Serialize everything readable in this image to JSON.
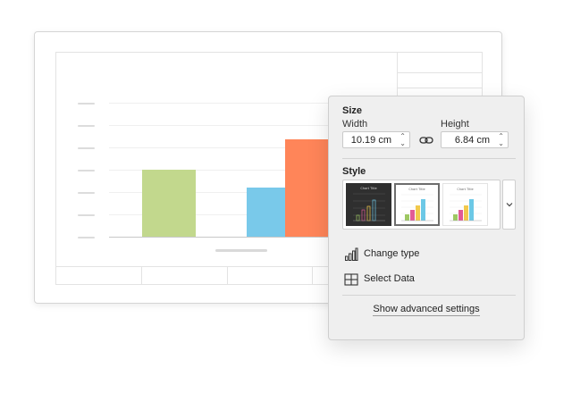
{
  "popover": {
    "size_title": "Size",
    "width_label": "Width",
    "width_value": "10.19 cm",
    "height_label": "Height",
    "height_value": "6.84 cm",
    "style_title": "Style",
    "style_thumbnails": [
      {
        "title": "Chart Title",
        "theme": "dark"
      },
      {
        "title": "Chart Title",
        "theme": "light"
      },
      {
        "title": "Chart Title",
        "theme": "light"
      }
    ],
    "change_type_label": "Change type",
    "select_data_label": "Select Data",
    "advanced_settings_label": "Show advanced settings"
  },
  "chart_data": {
    "type": "bar",
    "categories": [
      "",
      "",
      ""
    ],
    "series": [
      {
        "values": [
          50,
          null,
          null
        ],
        "color": "#c2d88d"
      },
      {
        "values": [
          null,
          37,
          null
        ],
        "color": "#79c9ea"
      },
      {
        "values": [
          null,
          null,
          73
        ],
        "color": "#ff8559"
      }
    ],
    "title": "",
    "xlabel": "",
    "ylabel": "",
    "ylim": [
      0,
      100
    ],
    "grid": true
  },
  "colors": {
    "accent_orange": "#ff8559",
    "accent_blue": "#79c9ea",
    "accent_green": "#c2d88d",
    "popover_bg": "#efefef"
  }
}
